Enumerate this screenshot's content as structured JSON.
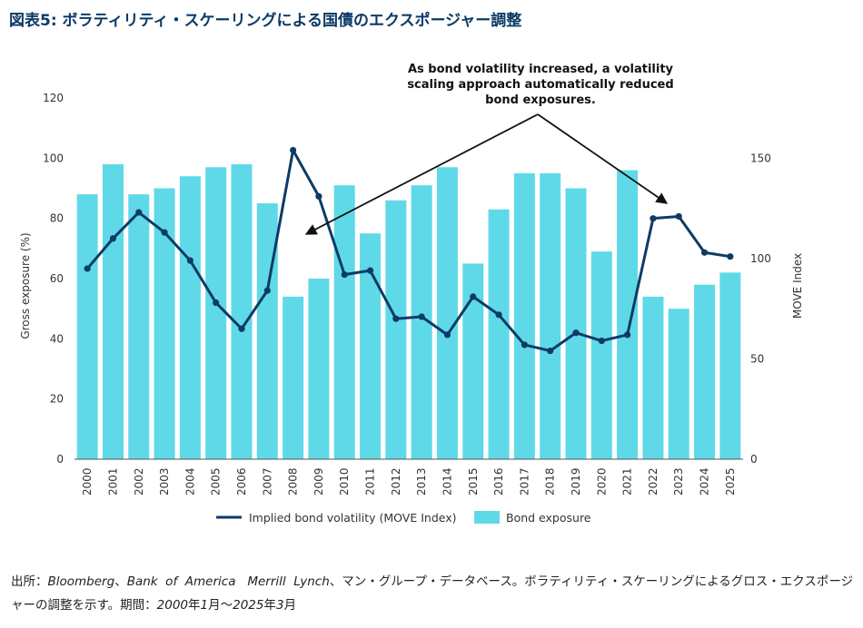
{
  "title": "図表5: ボラティリティ・スケーリングによる国債のエクスポージャー調整",
  "annotation": {
    "line1": "As bond volatility increased, a volatility",
    "line2": "scaling approach automatically reduced",
    "line3": "bond exposures."
  },
  "source": {
    "prefix": "出所：",
    "em1": "Bloomberg",
    "sep1": "、",
    "em2": "Bank  of  America   Merrill  Lynch",
    "mid": "、マン・グループ・データベース。ボラティリティ・スケーリングによるグロス・エクスポージャーの調整を示す。期間：",
    "em3": "2000",
    "t1": "年",
    "em4": "1",
    "t2": "月～",
    "em5": "2025",
    "t3": "年",
    "em6": "3",
    "t4": "月"
  },
  "colors": {
    "bar": "#5fd9e8",
    "line": "#0d3b66",
    "title": "#0b3a66"
  },
  "chart_data": {
    "type": "bar",
    "categories": [
      "2000",
      "2001",
      "2002",
      "2003",
      "2004",
      "2005",
      "2006",
      "2007",
      "2008",
      "2009",
      "2010",
      "2011",
      "2012",
      "2013",
      "2014",
      "2015",
      "2016",
      "2017",
      "2018",
      "2019",
      "2020",
      "2021",
      "2022",
      "2023",
      "2024",
      "2025"
    ],
    "series": [
      {
        "name": "Bond exposure",
        "type": "bar",
        "axis": "left",
        "values": [
          88,
          98,
          88,
          90,
          94,
          97,
          98,
          85,
          54,
          60,
          91,
          75,
          86,
          91,
          97,
          65,
          83,
          95,
          95,
          90,
          69,
          96,
          54,
          50,
          58,
          62
        ]
      },
      {
        "name": "Implied bond volatility (MOVE Index)",
        "type": "line",
        "axis": "right",
        "values": [
          95,
          110,
          123,
          113,
          99,
          78,
          65,
          84,
          154,
          131,
          92,
          94,
          70,
          71,
          62,
          81,
          72,
          57,
          54,
          63,
          59,
          62,
          120,
          121,
          103,
          101
        ]
      }
    ],
    "ylabel": "Gross exposure (%)",
    "y2label": "MOVE Index",
    "ylim": [
      0,
      120
    ],
    "yticks": [
      "0",
      "20",
      "40",
      "60",
      "80",
      "100",
      "120"
    ],
    "y2lim": [
      0,
      180
    ],
    "y2ticks": [
      "0",
      "50",
      "100",
      "150"
    ],
    "legend": [
      "Implied bond volatility (MOVE Index)",
      "Bond exposure"
    ],
    "legend_position": "bottom",
    "grid": false
  }
}
